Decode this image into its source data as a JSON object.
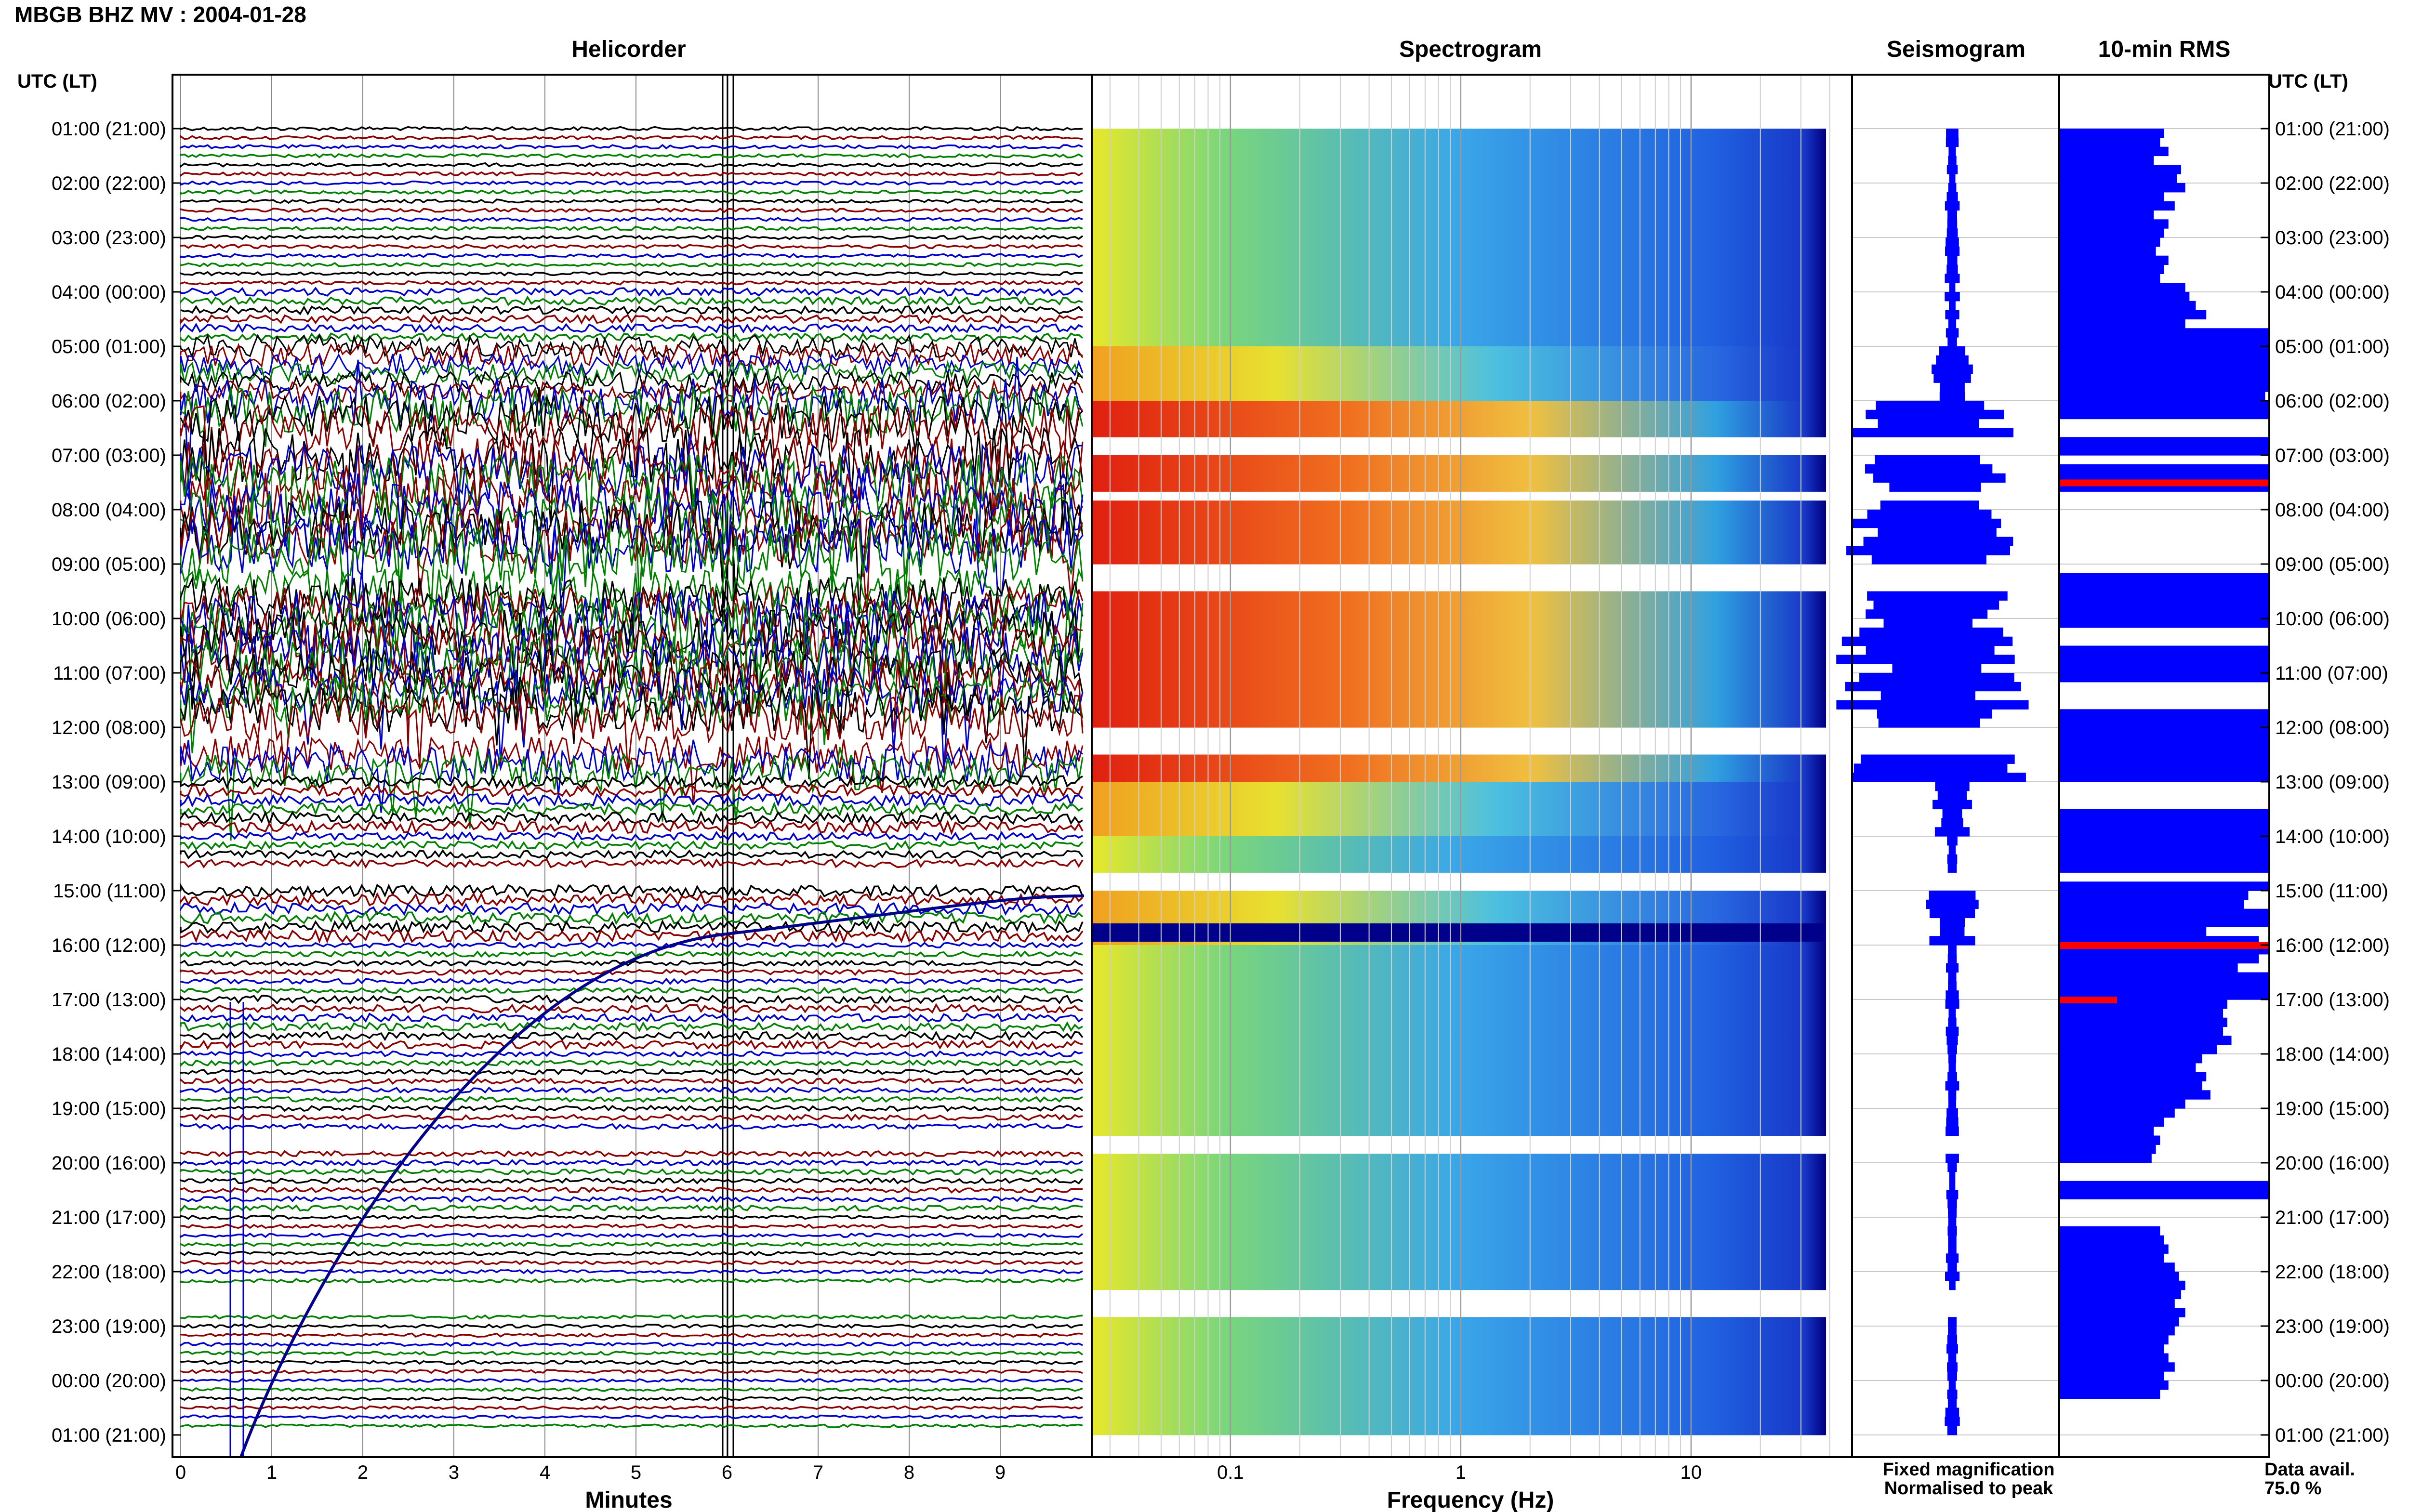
{
  "header": {
    "title": "MBGB BHZ MV : 2004-01-28",
    "time_axis_label": "UTC (LT)"
  },
  "panels": {
    "helicorder": "Helicorder",
    "spectrogram": "Spectrogram",
    "seismogram": "Seismogram",
    "rms": "10-min RMS"
  },
  "legend": {
    "fixed": "Fixed magnification",
    "normalised": "Normalised to peak",
    "fixed_color": "#0000ff",
    "normalised_color": "#ff0000"
  },
  "availability": {
    "label": "Data avail.",
    "value": "75.0 %"
  },
  "colors": {
    "trace_cycle": [
      "#000000",
      "#8b0000",
      "#0000cd",
      "#008000"
    ],
    "seismogram_fill": "#0000ff",
    "rms_fill": "#0000ff",
    "rms_peak": "#ff0000"
  },
  "chart_data": [
    {
      "type": "line",
      "title": "Helicorder",
      "xlabel": "Minutes",
      "ylabel": "UTC (LT)",
      "xlim": [
        0,
        10
      ],
      "xticks": [
        "0",
        "1",
        "2",
        "3",
        "4",
        "5",
        "6",
        "7",
        "8",
        "9"
      ],
      "yticks": [
        "01:00 (21:00)",
        "02:00 (22:00)",
        "03:00 (23:00)",
        "04:00 (00:00)",
        "05:00 (01:00)",
        "06:00 (02:00)",
        "07:00 (03:00)",
        "08:00 (04:00)",
        "09:00 (05:00)",
        "10:00 (06:00)",
        "11:00 (07:00)",
        "12:00 (08:00)",
        "13:00 (09:00)",
        "14:00 (10:00)",
        "15:00 (11:00)",
        "16:00 (12:00)",
        "17:00 (13:00)",
        "18:00 (14:00)",
        "19:00 (15:00)",
        "20:00 (16:00)",
        "21:00 (17:00)",
        "22:00 (18:00)",
        "23:00 (19:00)",
        "00:00 (20:00)",
        "01:00 (21:00)"
      ],
      "hour_activity": [
        1,
        1,
        1,
        3,
        6,
        9,
        10,
        10,
        9,
        10,
        9,
        8,
        4,
        3,
        4,
        2,
        3,
        2,
        2,
        2,
        1,
        1,
        1,
        0
      ],
      "data_gaps_hours": [
        [
          5.6,
          5.9
        ],
        [
          6.6,
          6.8
        ],
        [
          8.0,
          8.5
        ],
        [
          11.0,
          11.4
        ],
        [
          13.6,
          13.9
        ],
        [
          15.9,
          16.0
        ],
        [
          18.5,
          18.8
        ],
        [
          20.7,
          20.8
        ],
        [
          21.2,
          21.8
        ]
      ],
      "grid": true
    },
    {
      "type": "heatmap",
      "title": "Spectrogram",
      "xlabel": "Frequency (Hz)",
      "xscale": "log",
      "xlim": [
        0.025,
        50
      ],
      "xticks": [
        "0.1",
        "1",
        "10"
      ],
      "colormap": "jet",
      "grid": true
    },
    {
      "type": "bar",
      "title": "Seismogram",
      "orientation": "horizontal",
      "hour_rows": 24
    },
    {
      "type": "bar",
      "title": "10-min RMS",
      "orientation": "horizontal",
      "hour_rows": 24,
      "values_relative": [
        0.5,
        0.48,
        0.52,
        0.45,
        0.58,
        0.56,
        0.6,
        0.5,
        0.55,
        0.45,
        0.52,
        0.5,
        0.48,
        0.46,
        0.52,
        0.5,
        0.48,
        0.6,
        0.62,
        0.65,
        0.7,
        0.6,
        1,
        1,
        1,
        1,
        1,
        1,
        1,
        0.98,
        1,
        1,
        0,
        0,
        1,
        1,
        0,
        1,
        1,
        1,
        0,
        0,
        0,
        0,
        0,
        0,
        0,
        0,
        0,
        1,
        1,
        1,
        1,
        1,
        1,
        0,
        0,
        1,
        1,
        1,
        1,
        0,
        0,
        0,
        1,
        1,
        1,
        1,
        1,
        1,
        1,
        1,
        0,
        0,
        0,
        1,
        1,
        1,
        1,
        1,
        1,
        1,
        0,
        1,
        0.9,
        0.88,
        1,
        1,
        0.7,
        0.95,
        1,
        0.95,
        0.85,
        1,
        1,
        1,
        0.8,
        0.78,
        0.8,
        0.78,
        0.82,
        0.75,
        0.68,
        0.65,
        0.7,
        0.68,
        0.72,
        0.6,
        0.55,
        0.5,
        0.45,
        0.48,
        0.46,
        0.44,
        0,
        0,
        1,
        1,
        0,
        0,
        0,
        0.48,
        0.5,
        0.52,
        0.5,
        0.55,
        0.57,
        0.6,
        0.58,
        0.55,
        0.6,
        0.57,
        0.55,
        0.52,
        0.5,
        0.52,
        0.55,
        0.5,
        0.52,
        0.48
      ],
      "peak_marks_hours": [
        6.5,
        15.0,
        16.0
      ]
    }
  ]
}
